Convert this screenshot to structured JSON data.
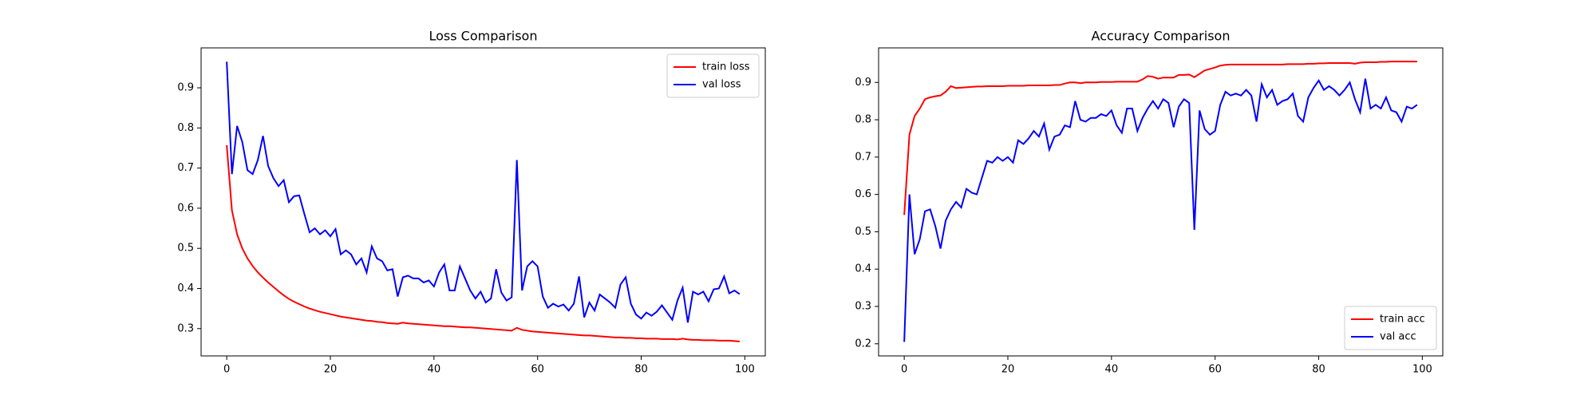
{
  "chart_data": [
    {
      "type": "line",
      "title": "Loss Comparison",
      "x": [
        0,
        1,
        2,
        3,
        4,
        5,
        6,
        7,
        8,
        9,
        10,
        11,
        12,
        13,
        14,
        15,
        16,
        17,
        18,
        19,
        20,
        21,
        22,
        23,
        24,
        25,
        26,
        27,
        28,
        29,
        30,
        31,
        32,
        33,
        34,
        35,
        36,
        37,
        38,
        39,
        40,
        41,
        42,
        43,
        44,
        45,
        46,
        47,
        48,
        49,
        50,
        51,
        52,
        53,
        54,
        55,
        56,
        57,
        58,
        59,
        60,
        61,
        62,
        63,
        64,
        65,
        66,
        67,
        68,
        69,
        70,
        71,
        72,
        73,
        74,
        75,
        76,
        77,
        78,
        79,
        80,
        81,
        82,
        83,
        84,
        85,
        86,
        87,
        88,
        89,
        90,
        91,
        92,
        93,
        94,
        95,
        96,
        97,
        98,
        99
      ],
      "series": [
        {
          "name": "train loss",
          "color": "#ff0000",
          "values": [
            0.757,
            0.595,
            0.535,
            0.5,
            0.475,
            0.456,
            0.44,
            0.427,
            0.415,
            0.404,
            0.393,
            0.383,
            0.374,
            0.367,
            0.361,
            0.355,
            0.35,
            0.346,
            0.342,
            0.339,
            0.336,
            0.333,
            0.33,
            0.328,
            0.326,
            0.324,
            0.322,
            0.32,
            0.319,
            0.317,
            0.316,
            0.314,
            0.313,
            0.312,
            0.315,
            0.313,
            0.312,
            0.311,
            0.31,
            0.309,
            0.308,
            0.307,
            0.306,
            0.306,
            0.305,
            0.304,
            0.303,
            0.303,
            0.302,
            0.301,
            0.3,
            0.299,
            0.298,
            0.297,
            0.296,
            0.295,
            0.302,
            0.297,
            0.295,
            0.293,
            0.292,
            0.291,
            0.29,
            0.289,
            0.288,
            0.287,
            0.286,
            0.285,
            0.284,
            0.283,
            0.283,
            0.282,
            0.281,
            0.28,
            0.279,
            0.278,
            0.278,
            0.277,
            0.277,
            0.276,
            0.276,
            0.275,
            0.275,
            0.275,
            0.274,
            0.274,
            0.274,
            0.273,
            0.275,
            0.273,
            0.272,
            0.272,
            0.271,
            0.271,
            0.271,
            0.27,
            0.27,
            0.27,
            0.269,
            0.268
          ]
        },
        {
          "name": "val loss",
          "color": "#0000ff",
          "values": [
            0.965,
            0.685,
            0.805,
            0.765,
            0.695,
            0.685,
            0.72,
            0.78,
            0.705,
            0.675,
            0.655,
            0.67,
            0.615,
            0.63,
            0.632,
            0.585,
            0.54,
            0.55,
            0.535,
            0.545,
            0.53,
            0.548,
            0.485,
            0.495,
            0.485,
            0.46,
            0.475,
            0.44,
            0.505,
            0.475,
            0.468,
            0.445,
            0.448,
            0.38,
            0.428,
            0.432,
            0.425,
            0.425,
            0.415,
            0.42,
            0.405,
            0.44,
            0.46,
            0.395,
            0.395,
            0.455,
            0.425,
            0.395,
            0.375,
            0.392,
            0.365,
            0.375,
            0.448,
            0.39,
            0.37,
            0.378,
            0.72,
            0.395,
            0.455,
            0.468,
            0.455,
            0.38,
            0.352,
            0.362,
            0.355,
            0.36,
            0.345,
            0.362,
            0.43,
            0.328,
            0.365,
            0.345,
            0.385,
            0.375,
            0.365,
            0.352,
            0.41,
            0.428,
            0.362,
            0.335,
            0.325,
            0.34,
            0.332,
            0.342,
            0.358,
            0.34,
            0.322,
            0.37,
            0.402,
            0.315,
            0.392,
            0.385,
            0.392,
            0.368,
            0.398,
            0.4,
            0.43,
            0.388,
            0.395,
            0.386
          ]
        }
      ],
      "xlim": [
        -4.95,
        103.95
      ],
      "xticks": [
        0,
        20,
        40,
        60,
        80,
        100
      ],
      "ylim": [
        0.232,
        0.9995
      ],
      "yticks": [
        0.3,
        0.4,
        0.5,
        0.6,
        0.7,
        0.8,
        0.9
      ],
      "legend": "upper right"
    },
    {
      "type": "line",
      "title": "Accuracy Comparison",
      "x": [
        0,
        1,
        2,
        3,
        4,
        5,
        6,
        7,
        8,
        9,
        10,
        11,
        12,
        13,
        14,
        15,
        16,
        17,
        18,
        19,
        20,
        21,
        22,
        23,
        24,
        25,
        26,
        27,
        28,
        29,
        30,
        31,
        32,
        33,
        34,
        35,
        36,
        37,
        38,
        39,
        40,
        41,
        42,
        43,
        44,
        45,
        46,
        47,
        48,
        49,
        50,
        51,
        52,
        53,
        54,
        55,
        56,
        57,
        58,
        59,
        60,
        61,
        62,
        63,
        64,
        65,
        66,
        67,
        68,
        69,
        70,
        71,
        72,
        73,
        74,
        75,
        76,
        77,
        78,
        79,
        80,
        81,
        82,
        83,
        84,
        85,
        86,
        87,
        88,
        89,
        90,
        91,
        92,
        93,
        94,
        95,
        96,
        97,
        98,
        99
      ],
      "series": [
        {
          "name": "train acc",
          "color": "#ff0000",
          "values": [
            0.545,
            0.76,
            0.81,
            0.83,
            0.855,
            0.86,
            0.863,
            0.865,
            0.875,
            0.89,
            0.885,
            0.886,
            0.887,
            0.888,
            0.889,
            0.889,
            0.89,
            0.89,
            0.89,
            0.89,
            0.891,
            0.891,
            0.891,
            0.891,
            0.892,
            0.892,
            0.892,
            0.892,
            0.892,
            0.893,
            0.893,
            0.897,
            0.9,
            0.9,
            0.898,
            0.9,
            0.9,
            0.9,
            0.901,
            0.901,
            0.901,
            0.902,
            0.902,
            0.902,
            0.902,
            0.902,
            0.908,
            0.917,
            0.915,
            0.91,
            0.913,
            0.913,
            0.913,
            0.92,
            0.92,
            0.921,
            0.914,
            0.923,
            0.932,
            0.936,
            0.94,
            0.945,
            0.947,
            0.948,
            0.948,
            0.948,
            0.948,
            0.948,
            0.948,
            0.948,
            0.948,
            0.948,
            0.948,
            0.948,
            0.949,
            0.949,
            0.949,
            0.949,
            0.95,
            0.95,
            0.951,
            0.951,
            0.952,
            0.952,
            0.952,
            0.952,
            0.952,
            0.95,
            0.953,
            0.954,
            0.954,
            0.954,
            0.955,
            0.955,
            0.956,
            0.956,
            0.956,
            0.956,
            0.956,
            0.956
          ]
        },
        {
          "name": "val acc",
          "color": "#0000ff",
          "values": [
            0.205,
            0.6,
            0.44,
            0.48,
            0.555,
            0.56,
            0.515,
            0.455,
            0.53,
            0.56,
            0.58,
            0.565,
            0.615,
            0.605,
            0.6,
            0.645,
            0.69,
            0.685,
            0.7,
            0.69,
            0.7,
            0.685,
            0.745,
            0.735,
            0.75,
            0.77,
            0.755,
            0.79,
            0.72,
            0.755,
            0.76,
            0.785,
            0.78,
            0.85,
            0.8,
            0.795,
            0.805,
            0.805,
            0.815,
            0.81,
            0.825,
            0.785,
            0.765,
            0.83,
            0.83,
            0.77,
            0.805,
            0.83,
            0.85,
            0.83,
            0.855,
            0.845,
            0.78,
            0.835,
            0.855,
            0.845,
            0.505,
            0.825,
            0.775,
            0.76,
            0.77,
            0.84,
            0.875,
            0.865,
            0.87,
            0.865,
            0.88,
            0.865,
            0.795,
            0.895,
            0.86,
            0.88,
            0.84,
            0.85,
            0.855,
            0.87,
            0.81,
            0.795,
            0.86,
            0.885,
            0.905,
            0.88,
            0.89,
            0.88,
            0.865,
            0.88,
            0.9,
            0.855,
            0.82,
            0.91,
            0.83,
            0.84,
            0.83,
            0.86,
            0.825,
            0.82,
            0.795,
            0.835,
            0.83,
            0.84
          ]
        }
      ],
      "xlim": [
        -4.95,
        103.95
      ],
      "xticks": [
        0,
        20,
        40,
        60,
        80,
        100
      ],
      "ylim": [
        0.1675,
        0.9925
      ],
      "yticks": [
        0.2,
        0.3,
        0.4,
        0.5,
        0.6,
        0.7,
        0.8,
        0.9
      ],
      "legend": "lower right"
    }
  ]
}
